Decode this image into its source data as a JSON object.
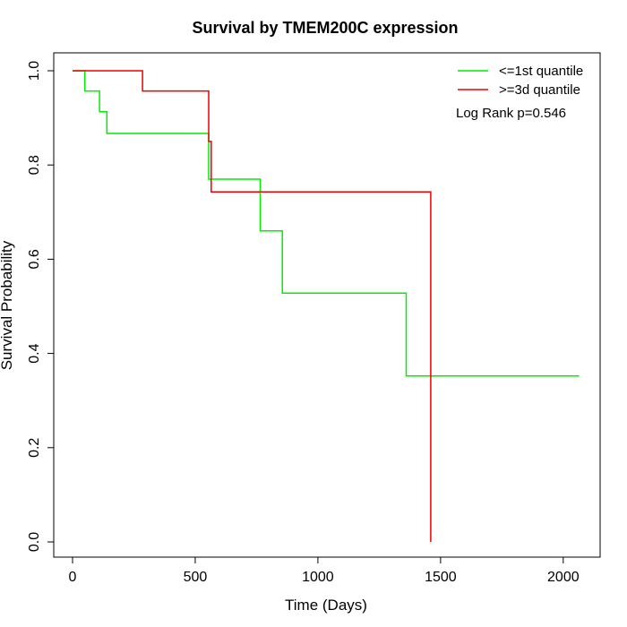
{
  "chart_data": {
    "type": "line",
    "title": "Survival by TMEM200C expression",
    "xlabel": "Time (Days)",
    "ylabel": "Survival Probability",
    "xlim": [
      0,
      2070
    ],
    "ylim": [
      0,
      1
    ],
    "x_ticks": [
      0,
      500,
      1000,
      1500,
      2000
    ],
    "y_ticks": [
      0.0,
      0.2,
      0.4,
      0.6,
      0.8,
      1.0
    ],
    "x_tick_labels": [
      "0",
      "500",
      "1000",
      "1500",
      "2000"
    ],
    "y_tick_labels": [
      "0.0",
      "0.2",
      "0.4",
      "0.6",
      "0.8",
      "1.0"
    ],
    "grid": false,
    "legend_position": "top-right",
    "annotation": "Log Rank p=0.546",
    "series": [
      {
        "name": "<=1st quantile",
        "color": "#00ee00",
        "step_x": [
          0,
          50,
          50,
          110,
          110,
          140,
          140,
          555,
          555,
          765,
          765,
          855,
          855,
          1360,
          1360,
          2065
        ],
        "step_y": [
          1.0,
          1.0,
          0.957,
          0.957,
          0.913,
          0.913,
          0.867,
          0.867,
          0.77,
          0.77,
          0.66,
          0.66,
          0.528,
          0.528,
          0.352,
          0.352
        ]
      },
      {
        "name": ">=3d quantile",
        "color": "#ee0000",
        "step_x": [
          0,
          285,
          285,
          555,
          555,
          565,
          565,
          1460,
          1460
        ],
        "step_y": [
          1.0,
          1.0,
          0.957,
          0.957,
          0.85,
          0.85,
          0.743,
          0.743,
          0.0
        ]
      }
    ]
  }
}
